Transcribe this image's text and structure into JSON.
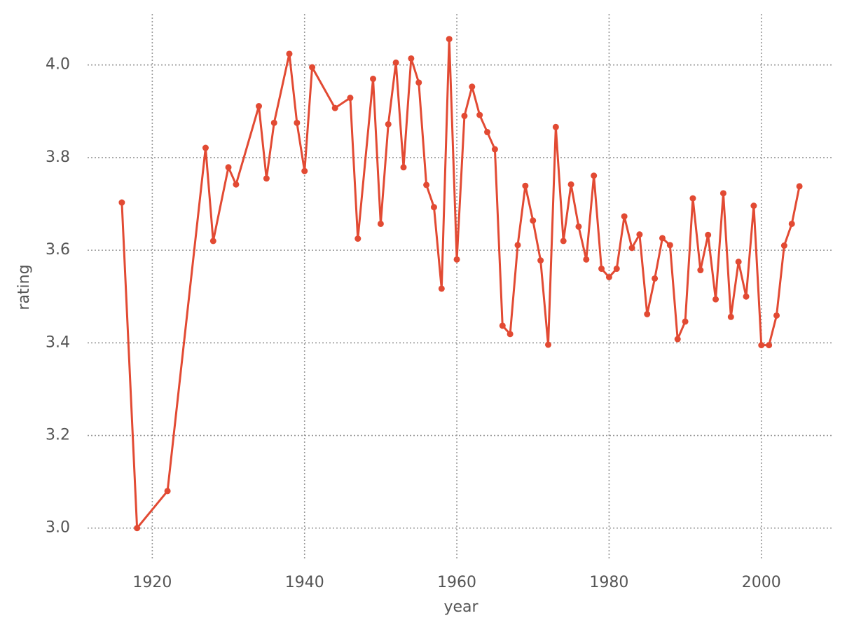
{
  "chart_data": {
    "type": "line",
    "x_label": "year",
    "y_label": "rating",
    "x": [
      1916,
      1918,
      1922,
      1927,
      1928,
      1930,
      1931,
      1934,
      1935,
      1936,
      1938,
      1939,
      1940,
      1941,
      1944,
      1946,
      1947,
      1949,
      1950,
      1951,
      1952,
      1953,
      1954,
      1955,
      1956,
      1957,
      1958,
      1959,
      1960,
      1961,
      1962,
      1963,
      1964,
      1965,
      1966,
      1967,
      1968,
      1969,
      1970,
      1971,
      1972,
      1973,
      1974,
      1975,
      1976,
      1977,
      1978,
      1979,
      1980,
      1981,
      1982,
      1983,
      1984,
      1985,
      1986,
      1987,
      1988,
      1989,
      1990,
      1991,
      1992,
      1993,
      1994,
      1995,
      1996,
      1997,
      1998,
      1999,
      2000,
      2001,
      2002,
      2003,
      2004,
      2005
    ],
    "series": [
      {
        "name": "rating",
        "color": "#e24a33",
        "values": [
          3.703,
          3.0,
          3.08,
          3.821,
          3.62,
          3.779,
          3.742,
          3.911,
          3.755,
          3.875,
          4.024,
          3.875,
          3.771,
          3.995,
          3.907,
          3.929,
          3.625,
          3.97,
          3.657,
          3.872,
          4.005,
          3.779,
          4.014,
          3.962,
          3.741,
          3.693,
          3.517,
          4.056,
          3.58,
          3.89,
          3.953,
          3.892,
          3.855,
          3.818,
          3.437,
          3.419,
          3.611,
          3.739,
          3.664,
          3.578,
          3.396,
          3.866,
          3.62,
          3.742,
          3.651,
          3.58,
          3.761,
          3.56,
          3.542,
          3.56,
          3.673,
          3.605,
          3.634,
          3.462,
          3.539,
          3.626,
          3.611,
          3.408,
          3.446,
          3.712,
          3.557,
          3.633,
          3.494,
          3.723,
          3.456,
          3.575,
          3.5,
          3.696,
          3.395,
          3.395,
          3.459,
          3.61,
          3.657,
          3.738
        ]
      }
    ],
    "xlim": [
      1911.5,
      2009.5
    ],
    "ylim": [
      2.93,
      4.11
    ],
    "xticks": [
      1920,
      1940,
      1960,
      1980,
      2000
    ],
    "yticks": [
      {
        "value": 3.0,
        "label": "3.0"
      },
      3.2,
      3.4,
      3.6,
      3.8,
      {
        "value": 4.0,
        "label": "4.0"
      }
    ],
    "grid": true
  }
}
